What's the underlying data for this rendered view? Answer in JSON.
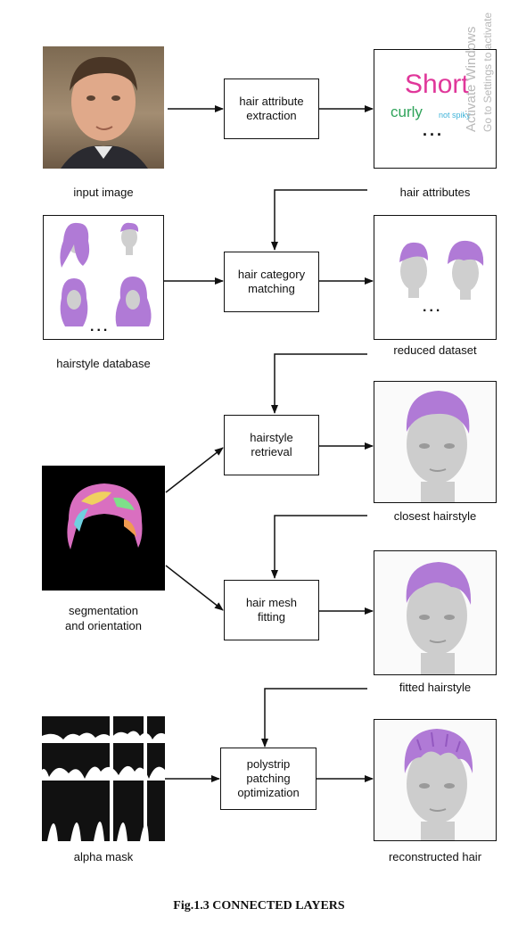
{
  "process_boxes": {
    "attr_extract": "hair attribute\nextraction",
    "category_match": "hair category\nmatching",
    "retrieval": "hairstyle\nretrieval",
    "mesh_fit": "hair mesh\nfitting",
    "polystrip": "polystrip\npatching\noptimization"
  },
  "labels": {
    "input_image": "input image",
    "hair_attributes": "hair attributes",
    "hairstyle_database": "hairstyle database",
    "reduced_dataset": "reduced dataset",
    "segmentation": "segmentation\nand orientation",
    "closest_hairstyle": "closest hairstyle",
    "fitted_hairstyle": "fitted hairstyle",
    "alpha_mask": "alpha mask",
    "reconstructed_hair": "reconstructed hair"
  },
  "attributes_panel": {
    "short": "Short",
    "curly": "curly",
    "not_spiky": "not spiky",
    "ellipsis": "..."
  },
  "ellipsis": "...",
  "caption": "Fig.1.3 CONNECTED LAYERS",
  "watermark": {
    "line1": "Activate Windows",
    "line2": "Go to Settings to activate"
  },
  "colors": {
    "hair_purple": "#b07ad6",
    "short_pink": "#e0379a",
    "curly_green": "#2fa35a",
    "spiky_cyan": "#3fb3d9"
  }
}
